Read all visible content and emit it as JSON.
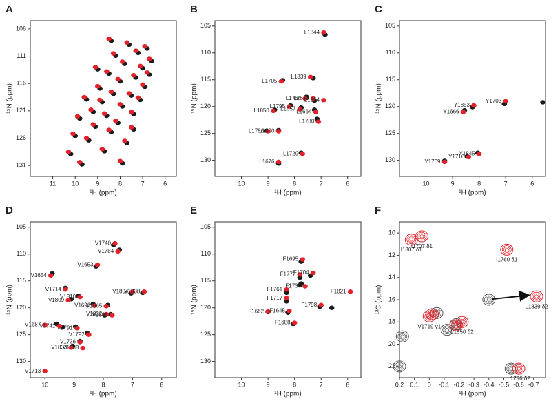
{
  "chart_data": [
    {
      "type": "scatter",
      "panel": "A",
      "x_label": "¹H (ppm)",
      "y_label": "¹⁵N (ppm)",
      "xlim": [
        12,
        5.5
      ],
      "ylim": [
        104.5,
        133
      ],
      "y_reversed": true,
      "xticks": [
        11,
        10,
        9,
        8,
        7,
        6
      ],
      "yticks": [
        106,
        111,
        116,
        121,
        126,
        131
      ],
      "peak_style": "filled",
      "series": [
        {
          "color": "#1a1a1a",
          "x": [
            10.2,
            10.0,
            9.8,
            9.7,
            9.5,
            9.4,
            9.2,
            9.1,
            8.9,
            8.8,
            8.7,
            8.6,
            8.5,
            8.4,
            8.3,
            8.2,
            8.1,
            8.0,
            7.9,
            7.8,
            7.7,
            7.6,
            7.5,
            7.4,
            7.3,
            7.2,
            7.1,
            7.0,
            6.9,
            6.8,
            6.7,
            6.6,
            8.4,
            7.9,
            7.4,
            9.0
          ],
          "values": [
            128.9,
            125.6,
            122.4,
            130.8,
            118.9,
            126.4,
            121.2,
            123.9,
            116.9,
            119.4,
            128.4,
            121.9,
            114.2,
            124.9,
            117.9,
            110.9,
            123.2,
            115.6,
            120.2,
            112.4,
            126.9,
            108.9,
            118.2,
            121.6,
            114.9,
            110.4,
            119,
            113.2,
            116.6,
            109.6,
            114.4,
            111.9,
            108.2,
            130.6,
            124.4,
            113.4
          ]
        },
        {
          "color": "#e0232b",
          "x": [
            10.3,
            10.1,
            9.9,
            9.8,
            9.6,
            9.5,
            9.3,
            9.2,
            9.0,
            8.9,
            8.8,
            8.7,
            8.6,
            8.5,
            8.4,
            8.3,
            8.2,
            8.1,
            8.0,
            7.9,
            7.8,
            7.7,
            7.6,
            7.5,
            7.4,
            7.3,
            7.2,
            7.1,
            7.0,
            6.9,
            6.8,
            6.7,
            8.5,
            8.0,
            7.5,
            9.1
          ],
          "values": [
            128.5,
            125.2,
            122,
            130.4,
            118.5,
            126,
            120.8,
            123.5,
            116.5,
            119,
            128,
            121.5,
            113.8,
            124.5,
            117.5,
            110.5,
            122.8,
            115.2,
            119.8,
            112,
            126.5,
            108.5,
            117.8,
            121.2,
            114.5,
            110,
            118.6,
            112.8,
            116.2,
            109.2,
            114,
            111.5,
            107.8,
            130.2,
            124,
            113
          ]
        }
      ]
    },
    {
      "type": "scatter",
      "panel": "B",
      "x_label": "¹H (ppm)",
      "y_label": "¹⁵N (ppm)",
      "xlim": [
        11,
        5.5
      ],
      "ylim": [
        104,
        133
      ],
      "y_reversed": true,
      "xticks": [
        10,
        9,
        8,
        7,
        6
      ],
      "yticks": [
        105,
        110,
        115,
        120,
        125,
        130
      ],
      "peak_style": "filled",
      "series": [
        {
          "color": "#1a1a1a",
          "x": [
            6.85,
            7.3,
            8.45,
            7.55,
            7.25,
            8.15,
            8.75,
            7.75,
            7.25,
            7.15,
            9.05,
            8.6,
            8.6,
            7.75
          ],
          "values": [
            106.6,
            114.7,
            115.1,
            118.2,
            118.9,
            119.8,
            120.6,
            120.2,
            120.6,
            122.3,
            124.5,
            124.4,
            130.6,
            128.6
          ]
        },
        {
          "color": "#e0232b",
          "x": [
            6.9,
            7.4,
            8.5,
            7.6,
            7.3,
            6.9,
            8.2,
            8.8,
            7.8,
            7.2,
            7.1,
            9.0,
            8.6,
            7.7,
            8.6
          ],
          "values": [
            106.2,
            114.5,
            115.3,
            118.5,
            118.5,
            118.8,
            120,
            120.8,
            120.5,
            121,
            122.8,
            124.6,
            124.6,
            128.8,
            130.3
          ],
          "labels": [
            "L1844",
            "L1839",
            "L1705",
            "L1764",
            "L1679",
            "L1854",
            "L1795",
            "L1850",
            "L1657",
            "L1664",
            "L1780",
            "L1786",
            "L1800",
            "L1729",
            "L1676"
          ]
        }
      ]
    },
    {
      "type": "scatter",
      "panel": "C",
      "x_label": "¹H (ppm)",
      "y_label": "¹⁵N (ppm)",
      "xlim": [
        11,
        5.5
      ],
      "ylim": [
        104,
        133
      ],
      "y_reversed": true,
      "xticks": [
        10,
        9,
        8,
        7,
        6
      ],
      "yticks": [
        105,
        110,
        115,
        120,
        125,
        130
      ],
      "peak_style": "filled",
      "series": [
        {
          "color": "#1a1a1a",
          "x": [
            7.05,
            8.25,
            8.55,
            8.45,
            8.05,
            9.3,
            5.6
          ],
          "values": [
            119.5,
            120.1,
            120.7,
            129.3,
            128.6,
            130.1,
            119.2
          ]
        },
        {
          "color": "#e0232b",
          "x": [
            7.0,
            8.2,
            8.6,
            8.4,
            8.0,
            9.3
          ],
          "values": [
            119,
            119.8,
            121,
            129.4,
            128.8,
            130.3
          ],
          "labels": [
            "Y1703",
            "Y1853",
            "Y1666",
            "Y1716",
            "Y1845",
            "Y1769"
          ]
        }
      ]
    },
    {
      "type": "scatter",
      "panel": "D",
      "x_label": "¹H (ppm)",
      "y_label": "¹⁵N (ppm)",
      "xlim": [
        10.5,
        5.5
      ],
      "ylim": [
        104,
        133
      ],
      "y_reversed": true,
      "xticks": [
        10,
        9,
        8,
        7,
        6
      ],
      "yticks": [
        105,
        110,
        115,
        120,
        125,
        130
      ],
      "peak_style": "filled",
      "series": [
        {
          "color": "#1a1a1a",
          "x": [
            7.65,
            7.45,
            8.25,
            9.75,
            9.3,
            8.85,
            9.1,
            7.05,
            6.65,
            8.35,
            7.85,
            7.95,
            7.75,
            9.6,
            8.95,
            9.4,
            8.55,
            8.8,
            9.05
          ],
          "values": [
            108.3,
            109.2,
            112.3,
            113.6,
            116.3,
            117.8,
            118.4,
            117.3,
            117.2,
            119.3,
            119.5,
            121.4,
            121.2,
            123,
            123.5,
            123.6,
            124.7,
            126.2,
            127.1
          ]
        },
        {
          "color": "#e0232b",
          "x": [
            7.6,
            7.5,
            8.2,
            9.8,
            9.3,
            8.8,
            9.2,
            7.0,
            6.6,
            8.3,
            7.9,
            7.9,
            7.7,
            10.0,
            8.9,
            9.5,
            8.5,
            8.8,
            9.1,
            8.7,
            10.0
          ],
          "values": [
            108,
            109.5,
            112,
            114,
            116.6,
            118,
            118.6,
            117,
            117,
            119.6,
            119.7,
            121.2,
            121.4,
            123.2,
            123.8,
            123.4,
            125,
            126.4,
            127.4,
            127.5,
            131.8
          ],
          "labels": [
            "V1740",
            "V1784",
            "V1653",
            "V1654",
            "V1714",
            "V1810",
            "V1809",
            "V1804",
            "V1838",
            "V1696",
            "V1665",
            "V1832",
            "V1808",
            "V1687",
            "V1791",
            "V1741",
            "V1792",
            "V1736",
            "V1833",
            "V1688",
            "V1713"
          ]
        }
      ]
    },
    {
      "type": "scatter",
      "panel": "E",
      "x_label": "¹H (ppm)",
      "y_label": "¹⁵N (ppm)",
      "xlim": [
        11,
        5.5
      ],
      "ylim": [
        104,
        133
      ],
      "y_reversed": true,
      "xticks": [
        10,
        9,
        8,
        7,
        6
      ],
      "yticks": [
        105,
        110,
        115,
        120,
        125,
        130
      ],
      "peak_style": "filled",
      "series": [
        {
          "color": "#1a1a1a",
          "x": [
            7.75,
            7.8,
            7.4,
            7.75,
            8.3,
            6.6,
            8.3,
            7.05,
            9.0,
            8.25,
            8.05,
            7.8
          ],
          "values": [
            111.4,
            114.4,
            114,
            115.5,
            117.2,
            120,
            118.8,
            119.8,
            120.8,
            120.9,
            123,
            115.8
          ]
        },
        {
          "color": "#e0232b",
          "x": [
            7.7,
            7.8,
            7.3,
            7.6,
            8.3,
            5.9,
            8.3,
            7.0,
            9.0,
            8.2,
            8.0
          ],
          "values": [
            111,
            113.8,
            113.5,
            116,
            116.6,
            117,
            118.2,
            119.5,
            120.7,
            120.6,
            122.8
          ],
          "labels": [
            "F1695",
            "F1772",
            "F1704",
            "F1734",
            "F1761",
            "F1821",
            "F1717",
            "F1798",
            "F1662",
            "F1645",
            "F1688"
          ]
        }
      ]
    },
    {
      "type": "scatter",
      "panel": "F",
      "x_label": "¹H (ppm)",
      "y_label": "¹³C (ppm)",
      "xlim": [
        0.2,
        -0.78
      ],
      "ylim": [
        9,
        23
      ],
      "y_reversed": true,
      "xticks": [
        0.2,
        0.1,
        0,
        -0.1,
        -0.2,
        -0.3,
        -0.4,
        -0.5,
        -0.6,
        -0.7
      ],
      "yticks": [
        10,
        12,
        14,
        16,
        18,
        20,
        22
      ],
      "peak_style": "contour",
      "arrow": {
        "x": [
          -0.42,
          -0.66
        ],
        "y": [
          15.95,
          15.6
        ]
      },
      "series": [
        {
          "color": "#555555",
          "x": [
            0.18,
            -0.05,
            -0.4,
            -0.55,
            -0.12,
            -0.18,
            0.2
          ],
          "values": [
            19.3,
            17.2,
            16,
            22.2,
            18.7,
            18.2,
            22
          ]
        },
        {
          "color": "#e0232b",
          "x": [
            0.05,
            0.12,
            -0.52,
            0.0,
            -0.22,
            -0.72,
            -0.6,
            -0.18,
            -0.02
          ],
          "values": [
            10.3,
            10.6,
            11.5,
            17.5,
            18,
            15.7,
            22.2,
            18.3,
            17.3
          ],
          "labels": [
            "I1707 δ1",
            "I1807 δ1",
            "I1760 δ1",
            "V1719 γ1",
            "L1850 δ2",
            "L1839 δ2",
            "L1786 δ2",
            null,
            null
          ]
        }
      ]
    }
  ]
}
